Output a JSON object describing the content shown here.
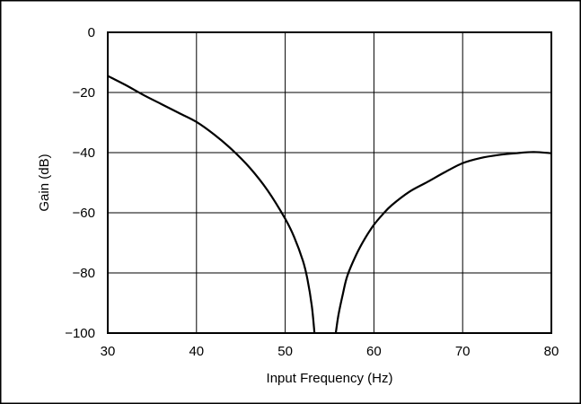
{
  "chart_data": {
    "type": "line",
    "title": "",
    "xlabel": "Input Frequency (Hz)",
    "ylabel": "Gain (dB)",
    "xlim": [
      30,
      80
    ],
    "ylim": [
      -100,
      0
    ],
    "x_ticks": [
      30,
      40,
      50,
      60,
      70,
      80
    ],
    "y_ticks": [
      0,
      -20,
      -40,
      -60,
      -80,
      -100
    ],
    "x_tick_labels": [
      "30",
      "40",
      "50",
      "60",
      "70",
      "80"
    ],
    "y_tick_labels": [
      "0",
      "−20",
      "−40",
      "−60",
      "−80",
      "−100"
    ],
    "grid": true,
    "legend": "none",
    "line_color": "#000000",
    "series": [
      {
        "segments": [
          {
            "x": [
              30,
              32,
              34,
              36,
              38,
              40,
              42,
              44,
              46,
              48,
              50,
              51,
              52,
              52.5,
              53,
              53.3
            ],
            "y": [
              -14.5,
              -17.5,
              -20.8,
              -23.8,
              -26.8,
              -29.8,
              -34,
              -39,
              -45,
              -52.5,
              -62,
              -68,
              -76,
              -82,
              -91,
              -100
            ]
          },
          {
            "x": [
              55.7,
              56,
              56.5,
              57,
              58,
              59,
              60,
              61,
              62,
              64,
              66,
              68,
              70,
              72,
              74,
              76,
              78,
              80
            ],
            "y": [
              -100,
              -94,
              -87,
              -81,
              -74,
              -68.5,
              -64,
              -60.5,
              -57.5,
              -53,
              -49.8,
              -46.5,
              -43.5,
              -41.8,
              -40.8,
              -40.2,
              -39.8,
              -40.2
            ]
          }
        ]
      }
    ]
  }
}
